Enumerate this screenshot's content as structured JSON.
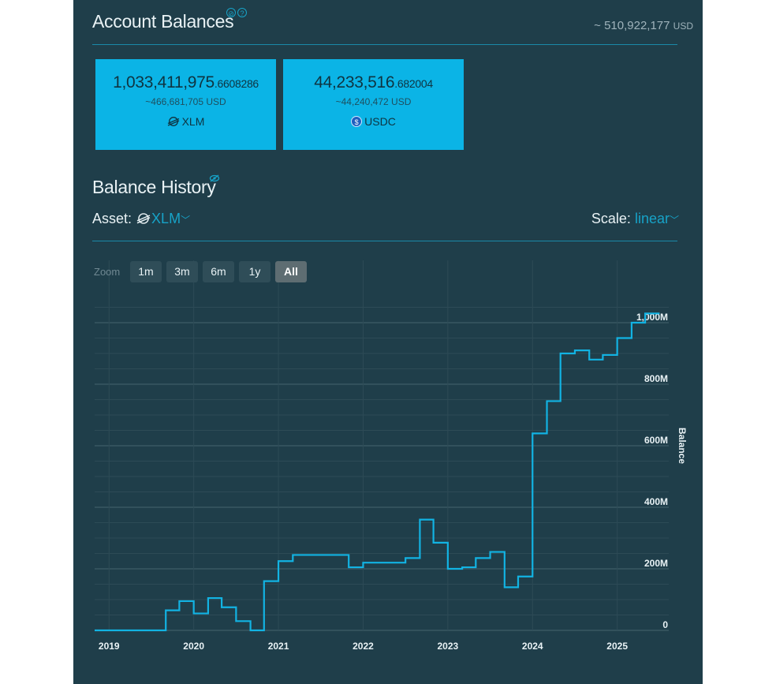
{
  "header": {
    "title": "Account Balances",
    "total_prefix": "~ 510,922,177",
    "total_currency": "USD"
  },
  "balances": [
    {
      "amount_main": "1,033,411,975",
      "amount_frac": ".6608286",
      "usd": "~466,681,705 USD",
      "asset": "XLM",
      "icon": "stellar-icon"
    },
    {
      "amount_main": "44,233,516",
      "amount_frac": ".682004",
      "usd": "~44,240,472 USD",
      "asset": "USDC",
      "icon": "usdc-icon"
    }
  ],
  "history": {
    "title": "Balance History",
    "asset_label": "Asset:",
    "asset_value": "XLM",
    "scale_label": "Scale:",
    "scale_value": "linear"
  },
  "zoom": {
    "label": "Zoom",
    "buttons": [
      "1m",
      "3m",
      "6m",
      "1y",
      "All"
    ],
    "active": "All"
  },
  "colors": {
    "panel_bg": "#1f3e4a",
    "card_bg": "#0bb4e6",
    "accent": "#17a3c8",
    "line": "#12b3e3"
  },
  "chart_data": {
    "type": "line",
    "step": true,
    "ylabel": "Balance",
    "xlabel": "",
    "y_ticks": [
      0,
      200,
      400,
      600,
      800,
      1000
    ],
    "y_tick_labels": [
      "0",
      "200M",
      "400M",
      "600M",
      "800M",
      "1,000M"
    ],
    "x_tick_labels": [
      "2019",
      "2020",
      "2021",
      "2022",
      "2023",
      "2024",
      "2025"
    ],
    "x_range": [
      2018.83,
      2025.5
    ],
    "ylim": [
      0,
      1050
    ],
    "unit": "M",
    "grid": true,
    "series": [
      {
        "x": [
          2018.83,
          2019.67,
          2019.83,
          2020.0,
          2020.17,
          2020.33,
          2020.5,
          2020.67,
          2020.83,
          2021.0,
          2021.17,
          2021.33,
          2021.83,
          2022.0,
          2022.33,
          2022.5,
          2022.67,
          2022.83,
          2023.0,
          2023.17,
          2023.33,
          2023.5,
          2023.67,
          2023.83,
          2024.0,
          2024.17,
          2024.33,
          2024.5,
          2024.67,
          2024.83,
          2025.0,
          2025.17,
          2025.33,
          2025.5
        ],
        "y": [
          0,
          65,
          95,
          55,
          105,
          75,
          30,
          0,
          160,
          225,
          245,
          245,
          205,
          220,
          220,
          235,
          360,
          285,
          200,
          205,
          235,
          255,
          140,
          175,
          640,
          745,
          900,
          910,
          880,
          895,
          950,
          1000,
          1030,
          1030
        ]
      }
    ]
  }
}
